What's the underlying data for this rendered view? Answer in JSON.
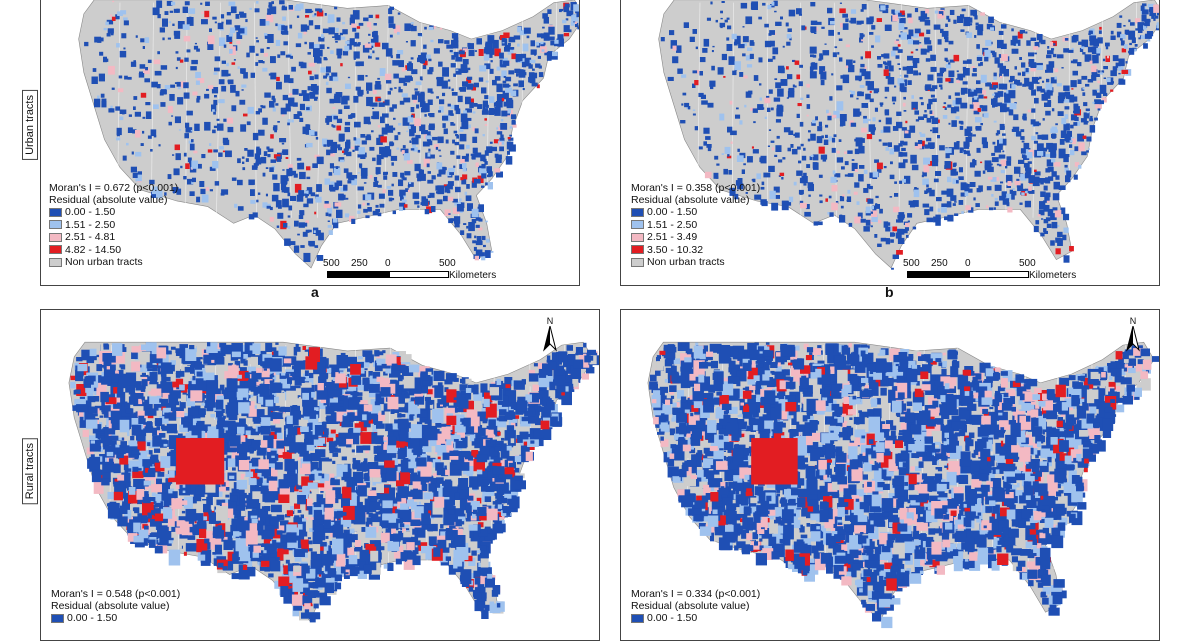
{
  "row_labels": {
    "urban": "Urban tracts",
    "rural": "Rural tracts"
  },
  "panel_letters": {
    "a": "a",
    "b": "b"
  },
  "north_label": "N",
  "colors": {
    "land_gray": "#cdcdcd",
    "low": "#1f4fb4",
    "mid": "#9fc2ee",
    "high": "#f3b9c3",
    "top": "#e21d22"
  },
  "panels": {
    "a": {
      "morans": "Moran's I  = 0.672 (p<0.001)",
      "legend_title": "Residual (absolute value)",
      "legend": [
        "0.00 - 1.50",
        "1.51 - 2.50",
        "2.51 - 4.81",
        "4.82 - 14.50"
      ],
      "nonurban": "Non urban tracts",
      "scale": {
        "l500": "500",
        "l250": "250",
        "l0": "0",
        "r500": "500",
        "unit": "Kilometers"
      }
    },
    "b": {
      "morans": "Moran's I  = 0.358 (p<0.001)",
      "legend_title": "Residual (absolute value)",
      "legend": [
        "0.00 - 1.50",
        "1.51 - 2.50",
        "2.51 - 3.49",
        "3.50 - 10.32"
      ],
      "nonurban": "Non urban tracts",
      "scale": {
        "l500": "500",
        "l250": "250",
        "l0": "0",
        "r500": "500",
        "unit": "Kilometers"
      }
    },
    "c": {
      "morans": "Moran's I  = 0.548 (p<0.001)",
      "legend_title": "Residual (absolute value)",
      "legend": [
        "0.00 - 1.50"
      ]
    },
    "d": {
      "morans": "Moran's I  = 0.334 (p<0.001)",
      "legend_title": "Residual (absolute value)",
      "legend": [
        "0.00 - 1.50"
      ]
    }
  }
}
